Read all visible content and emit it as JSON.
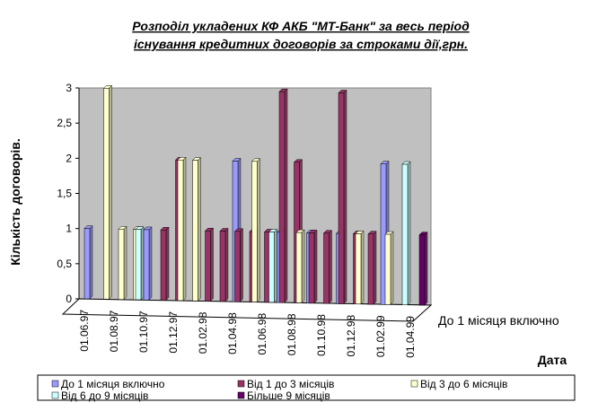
{
  "chart_data": {
    "type": "bar3d",
    "title": [
      "Розподіл укладених КФ АКБ \"МТ-Банк\" за весь період",
      "існування кредитних договорів за строками дії,грн."
    ],
    "y_label": "Кількість договорів.",
    "x_label": "Дата",
    "depth_label": "До 1 місяця включно",
    "categories": [
      "01.06.97",
      null,
      "01.08.97",
      null,
      "01.10.97",
      null,
      "01.12.97",
      null,
      "01.02.98",
      null,
      "01.04.98",
      null,
      "01.06.98",
      null,
      "01.08.98",
      null,
      "01.10.98",
      null,
      "01.12.98",
      null,
      "01.02.99",
      null,
      "01.04.99"
    ],
    "series": [
      {
        "name": "До 1 місяця включно",
        "color": "#9999ff",
        "values": [
          1,
          0,
          0,
          0,
          1,
          0,
          0,
          0,
          0,
          0,
          2,
          0,
          0,
          1,
          0,
          1,
          0,
          1,
          0,
          0,
          2,
          0,
          0
        ]
      },
      {
        "name": "Від 1 до 3 місяців",
        "color": "#993366",
        "values": [
          0,
          0,
          0,
          0,
          0,
          1,
          2,
          0,
          1,
          1,
          1,
          1,
          1,
          3,
          2,
          1,
          1,
          3,
          1,
          1,
          0,
          0,
          0
        ]
      },
      {
        "name": "Від 3 до 6 місяців",
        "color": "#ffffcc",
        "values": [
          0,
          3,
          1,
          1,
          0,
          0,
          2,
          2,
          0,
          0,
          0,
          2,
          0,
          0,
          1,
          0,
          0,
          0,
          1,
          0,
          1,
          0,
          0
        ]
      },
      {
        "name": "Від 6 до 9 місяців",
        "color": "#ccffff",
        "values": [
          0,
          0,
          0,
          1,
          0,
          0,
          0,
          0,
          0,
          0,
          0,
          0,
          1,
          0,
          0,
          0,
          0,
          0,
          0,
          0,
          0,
          2,
          0
        ]
      },
      {
        "name": "Більше 9 місяців",
        "color": "#660066",
        "values": [
          0,
          0,
          0,
          0,
          0,
          0,
          0,
          0,
          0,
          0,
          0,
          0,
          0,
          0,
          0,
          0,
          0,
          0,
          0,
          0,
          0,
          0,
          1
        ]
      }
    ],
    "ylim": [
      0,
      3
    ],
    "yticks": [
      0,
      {
        "value": 0.5,
        "label": "0,5"
      },
      1,
      {
        "value": 1.5,
        "label": "1,5"
      },
      2,
      {
        "value": 2.5,
        "label": "2,5"
      },
      3
    ]
  }
}
